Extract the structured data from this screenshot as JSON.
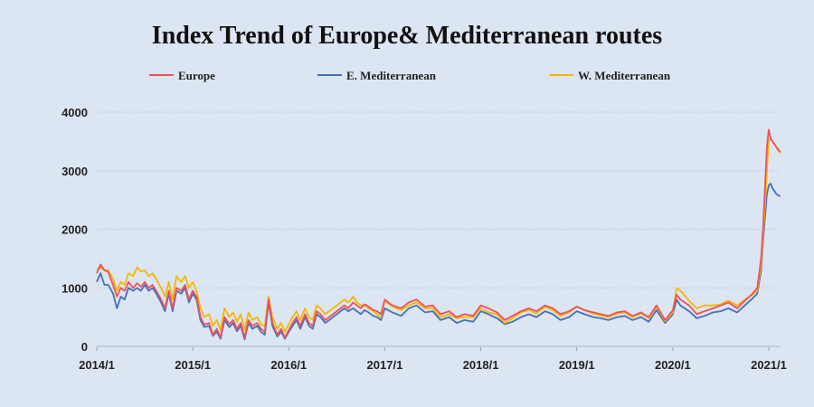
{
  "chart_data": {
    "type": "line",
    "title": "Index Trend of Europe& Mediterranean routes",
    "xlabel": "",
    "ylabel": "",
    "x_tick_labels": [
      "2014/1",
      "2015/1",
      "2016/1",
      "2017/1",
      "2018/1",
      "2019/1",
      "2020/1",
      "2021/1"
    ],
    "y_ticks": [
      0,
      1000,
      2000,
      3000,
      4000
    ],
    "ylim": [
      0,
      4000
    ],
    "grid": true,
    "legend_position": "top",
    "x_unit": "year (2014.0 = 2014/1)",
    "series": [
      {
        "name": "Europe",
        "color": "#f0505a",
        "x": [
          2014.0,
          2014.04,
          2014.08,
          2014.12,
          2014.17,
          2014.21,
          2014.25,
          2014.29,
          2014.33,
          2014.38,
          2014.42,
          2014.46,
          2014.5,
          2014.54,
          2014.58,
          2014.62,
          2014.67,
          2014.71,
          2014.75,
          2014.79,
          2014.83,
          2014.88,
          2014.92,
          2014.96,
          2015.0,
          2015.04,
          2015.08,
          2015.12,
          2015.17,
          2015.21,
          2015.25,
          2015.29,
          2015.33,
          2015.38,
          2015.42,
          2015.46,
          2015.5,
          2015.54,
          2015.58,
          2015.62,
          2015.67,
          2015.71,
          2015.75,
          2015.79,
          2015.83,
          2015.88,
          2015.92,
          2015.96,
          2016.0,
          2016.04,
          2016.08,
          2016.12,
          2016.17,
          2016.21,
          2016.25,
          2016.29,
          2016.33,
          2016.38,
          2016.42,
          2016.46,
          2016.5,
          2016.54,
          2016.58,
          2016.62,
          2016.67,
          2016.71,
          2016.75,
          2016.79,
          2016.83,
          2016.88,
          2016.92,
          2016.96,
          2017.0,
          2017.08,
          2017.17,
          2017.25,
          2017.33,
          2017.42,
          2017.5,
          2017.58,
          2017.67,
          2017.75,
          2017.83,
          2017.92,
          2018.0,
          2018.08,
          2018.17,
          2018.25,
          2018.33,
          2018.42,
          2018.5,
          2018.58,
          2018.67,
          2018.75,
          2018.83,
          2018.92,
          2019.0,
          2019.08,
          2019.17,
          2019.25,
          2019.33,
          2019.42,
          2019.5,
          2019.58,
          2019.67,
          2019.75,
          2019.83,
          2019.92,
          2020.0,
          2020.04,
          2020.08,
          2020.17,
          2020.25,
          2020.33,
          2020.42,
          2020.5,
          2020.58,
          2020.67,
          2020.75,
          2020.83,
          2020.88,
          2020.92,
          2020.94,
          2020.96,
          2020.98,
          2021.0,
          2021.02,
          2021.04,
          2021.06,
          2021.08,
          2021.1,
          2021.12
        ],
        "y": [
          1250,
          1400,
          1300,
          1270,
          1050,
          850,
          1000,
          950,
          1100,
          1000,
          1080,
          1020,
          1100,
          1000,
          1050,
          950,
          800,
          650,
          950,
          650,
          1000,
          950,
          1050,
          800,
          950,
          850,
          500,
          370,
          400,
          200,
          300,
          150,
          500,
          380,
          450,
          300,
          400,
          150,
          450,
          350,
          400,
          300,
          250,
          800,
          400,
          200,
          300,
          150,
          280,
          400,
          500,
          350,
          550,
          400,
          350,
          600,
          550,
          450,
          500,
          550,
          600,
          650,
          700,
          650,
          750,
          700,
          650,
          720,
          680,
          620,
          600,
          550,
          800,
          700,
          650,
          750,
          800,
          680,
          700,
          550,
          600,
          500,
          550,
          520,
          700,
          650,
          580,
          450,
          520,
          600,
          650,
          600,
          700,
          650,
          550,
          600,
          680,
          620,
          580,
          550,
          520,
          580,
          600,
          520,
          580,
          500,
          700,
          450,
          620,
          880,
          800,
          700,
          550,
          600,
          650,
          700,
          750,
          650,
          780,
          900,
          1000,
          1500,
          2000,
          2700,
          3400,
          3700,
          3550,
          3500,
          3450,
          3400,
          3350,
          3320
        ]
      },
      {
        "name": "E. Mediterranean",
        "color": "#4472b4",
        "x": [
          2014.0,
          2014.04,
          2014.08,
          2014.12,
          2014.17,
          2014.21,
          2014.25,
          2014.29,
          2014.33,
          2014.38,
          2014.42,
          2014.46,
          2014.5,
          2014.54,
          2014.58,
          2014.62,
          2014.67,
          2014.71,
          2014.75,
          2014.79,
          2014.83,
          2014.88,
          2014.92,
          2014.96,
          2015.0,
          2015.04,
          2015.08,
          2015.12,
          2015.17,
          2015.21,
          2015.25,
          2015.29,
          2015.33,
          2015.38,
          2015.42,
          2015.46,
          2015.5,
          2015.54,
          2015.58,
          2015.62,
          2015.67,
          2015.71,
          2015.75,
          2015.79,
          2015.83,
          2015.88,
          2015.92,
          2015.96,
          2016.0,
          2016.04,
          2016.08,
          2016.12,
          2016.17,
          2016.21,
          2016.25,
          2016.29,
          2016.33,
          2016.38,
          2016.42,
          2016.46,
          2016.5,
          2016.54,
          2016.58,
          2016.62,
          2016.67,
          2016.71,
          2016.75,
          2016.79,
          2016.83,
          2016.88,
          2016.92,
          2016.96,
          2017.0,
          2017.08,
          2017.17,
          2017.25,
          2017.33,
          2017.42,
          2017.5,
          2017.58,
          2017.67,
          2017.75,
          2017.83,
          2017.92,
          2018.0,
          2018.08,
          2018.17,
          2018.25,
          2018.33,
          2018.42,
          2018.5,
          2018.58,
          2018.67,
          2018.75,
          2018.83,
          2018.92,
          2019.0,
          2019.08,
          2019.17,
          2019.25,
          2019.33,
          2019.42,
          2019.5,
          2019.58,
          2019.67,
          2019.75,
          2019.83,
          2019.92,
          2020.0,
          2020.04,
          2020.08,
          2020.17,
          2020.25,
          2020.33,
          2020.42,
          2020.5,
          2020.58,
          2020.67,
          2020.75,
          2020.83,
          2020.88,
          2020.92,
          2020.94,
          2020.96,
          2020.98,
          2021.0,
          2021.02,
          2021.04,
          2021.06,
          2021.08,
          2021.1,
          2021.12
        ],
        "y": [
          1100,
          1250,
          1050,
          1050,
          900,
          650,
          850,
          800,
          1000,
          950,
          1000,
          950,
          1050,
          950,
          1000,
          900,
          750,
          600,
          900,
          600,
          950,
          900,
          1000,
          750,
          900,
          800,
          450,
          330,
          350,
          180,
          250,
          130,
          450,
          330,
          400,
          260,
          350,
          120,
          400,
          300,
          350,
          250,
          200,
          750,
          350,
          170,
          250,
          130,
          250,
          350,
          450,
          300,
          500,
          350,
          300,
          550,
          500,
          400,
          450,
          500,
          550,
          600,
          650,
          600,
          650,
          600,
          550,
          620,
          580,
          520,
          500,
          450,
          650,
          580,
          520,
          650,
          700,
          580,
          600,
          450,
          500,
          400,
          450,
          420,
          600,
          550,
          480,
          380,
          420,
          500,
          550,
          500,
          600,
          550,
          450,
          500,
          600,
          550,
          500,
          480,
          450,
          500,
          520,
          450,
          500,
          420,
          620,
          400,
          550,
          800,
          700,
          600,
          480,
          520,
          580,
          600,
          650,
          580,
          700,
          820,
          900,
          1300,
          1800,
          2200,
          2600,
          2750,
          2780,
          2700,
          2650,
          2600,
          2580,
          2560
        ]
      },
      {
        "name": "W. Mediterranean",
        "color": "#f5b800",
        "x": [
          2014.0,
          2014.04,
          2014.08,
          2014.12,
          2014.17,
          2014.21,
          2014.25,
          2014.29,
          2014.33,
          2014.38,
          2014.42,
          2014.46,
          2014.5,
          2014.54,
          2014.58,
          2014.62,
          2014.67,
          2014.71,
          2014.75,
          2014.79,
          2014.83,
          2014.88,
          2014.92,
          2014.96,
          2015.0,
          2015.04,
          2015.08,
          2015.12,
          2015.17,
          2015.21,
          2015.25,
          2015.29,
          2015.33,
          2015.38,
          2015.42,
          2015.46,
          2015.5,
          2015.54,
          2015.58,
          2015.62,
          2015.67,
          2015.71,
          2015.75,
          2015.79,
          2015.83,
          2015.88,
          2015.92,
          2015.96,
          2016.0,
          2016.04,
          2016.08,
          2016.12,
          2016.17,
          2016.21,
          2016.25,
          2016.29,
          2016.33,
          2016.38,
          2016.42,
          2016.46,
          2016.5,
          2016.54,
          2016.58,
          2016.62,
          2016.67,
          2016.71,
          2016.75,
          2016.79,
          2016.83,
          2016.88,
          2016.92,
          2016.96,
          2017.0,
          2017.08,
          2017.17,
          2017.25,
          2017.33,
          2017.42,
          2017.5,
          2017.58,
          2017.67,
          2017.75,
          2017.83,
          2017.92,
          2018.0,
          2018.08,
          2018.17,
          2018.25,
          2018.33,
          2018.42,
          2018.5,
          2018.58,
          2018.67,
          2018.75,
          2018.83,
          2018.92,
          2019.0,
          2019.08,
          2019.17,
          2019.25,
          2019.33,
          2019.42,
          2019.5,
          2019.58,
          2019.67,
          2019.75,
          2019.83,
          2019.92,
          2020.0,
          2020.04,
          2020.08,
          2020.17,
          2020.25,
          2020.33,
          2020.42,
          2020.5,
          2020.58,
          2020.67,
          2020.75,
          2020.83,
          2020.88,
          2020.92,
          2020.94,
          2020.96,
          2020.98,
          2021.0,
          2021.02,
          2021.04,
          2021.06,
          2021.08,
          2021.1,
          2021.12
        ],
        "y": [
          1300,
          1350,
          1300,
          1300,
          1150,
          950,
          1100,
          1050,
          1250,
          1200,
          1350,
          1280,
          1300,
          1200,
          1250,
          1150,
          1000,
          850,
          1100,
          800,
          1200,
          1100,
          1200,
          1000,
          1100,
          950,
          650,
          500,
          550,
          350,
          450,
          280,
          650,
          500,
          580,
          420,
          550,
          280,
          580,
          450,
          500,
          380,
          350,
          850,
          500,
          300,
          400,
          250,
          380,
          500,
          600,
          450,
          650,
          500,
          450,
          700,
          650,
          550,
          600,
          650,
          700,
          750,
          800,
          750,
          850,
          750,
          700,
          700,
          650,
          600,
          550,
          500,
          780,
          680,
          620,
          700,
          750,
          650,
          650,
          500,
          550,
          480,
          500,
          500,
          650,
          580,
          550,
          400,
          480,
          580,
          620,
          560,
          680,
          620,
          520,
          580,
          680,
          620,
          560,
          530,
          500,
          560,
          580,
          500,
          560,
          480,
          680,
          430,
          580,
          1000,
          950,
          780,
          650,
          700,
          700,
          720,
          780,
          700,
          800,
          880,
          950,
          1400,
          1900,
          2400,
          3000,
          3500,
          3550,
          3500,
          3450,
          3400,
          3380,
          3300
        ]
      }
    ]
  }
}
